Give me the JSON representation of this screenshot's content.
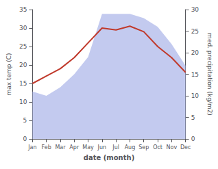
{
  "chart_data": {
    "type": "line",
    "xlabel": "date (month)",
    "ylabel": "max temp (C)",
    "y2label": "med. precipitation (kg/m2)",
    "categories": [
      "Jan",
      "Feb",
      "Mar",
      "Apr",
      "May",
      "Jun",
      "Jul",
      "Aug",
      "Sep",
      "Oct",
      "Nov",
      "Dec"
    ],
    "series": [
      {
        "type": "area",
        "axis": "y2",
        "color": "#aab4e8",
        "values": [
          11,
          10,
          12,
          15,
          19,
          29,
          29,
          29,
          28,
          26,
          22,
          17
        ]
      },
      {
        "type": "line",
        "color": "#c0392b",
        "values": [
          15,
          17,
          19,
          22,
          26,
          30,
          29.5,
          30.5,
          29,
          25,
          22,
          18
        ]
      }
    ],
    "ylim": [
      0,
      35
    ],
    "yticks": [
      0,
      5,
      10,
      15,
      20,
      25,
      30,
      35
    ],
    "y2lim": [
      0,
      30
    ],
    "y2ticks": [
      0,
      5,
      10,
      15,
      20,
      25,
      30
    ],
    "grid": false
  }
}
